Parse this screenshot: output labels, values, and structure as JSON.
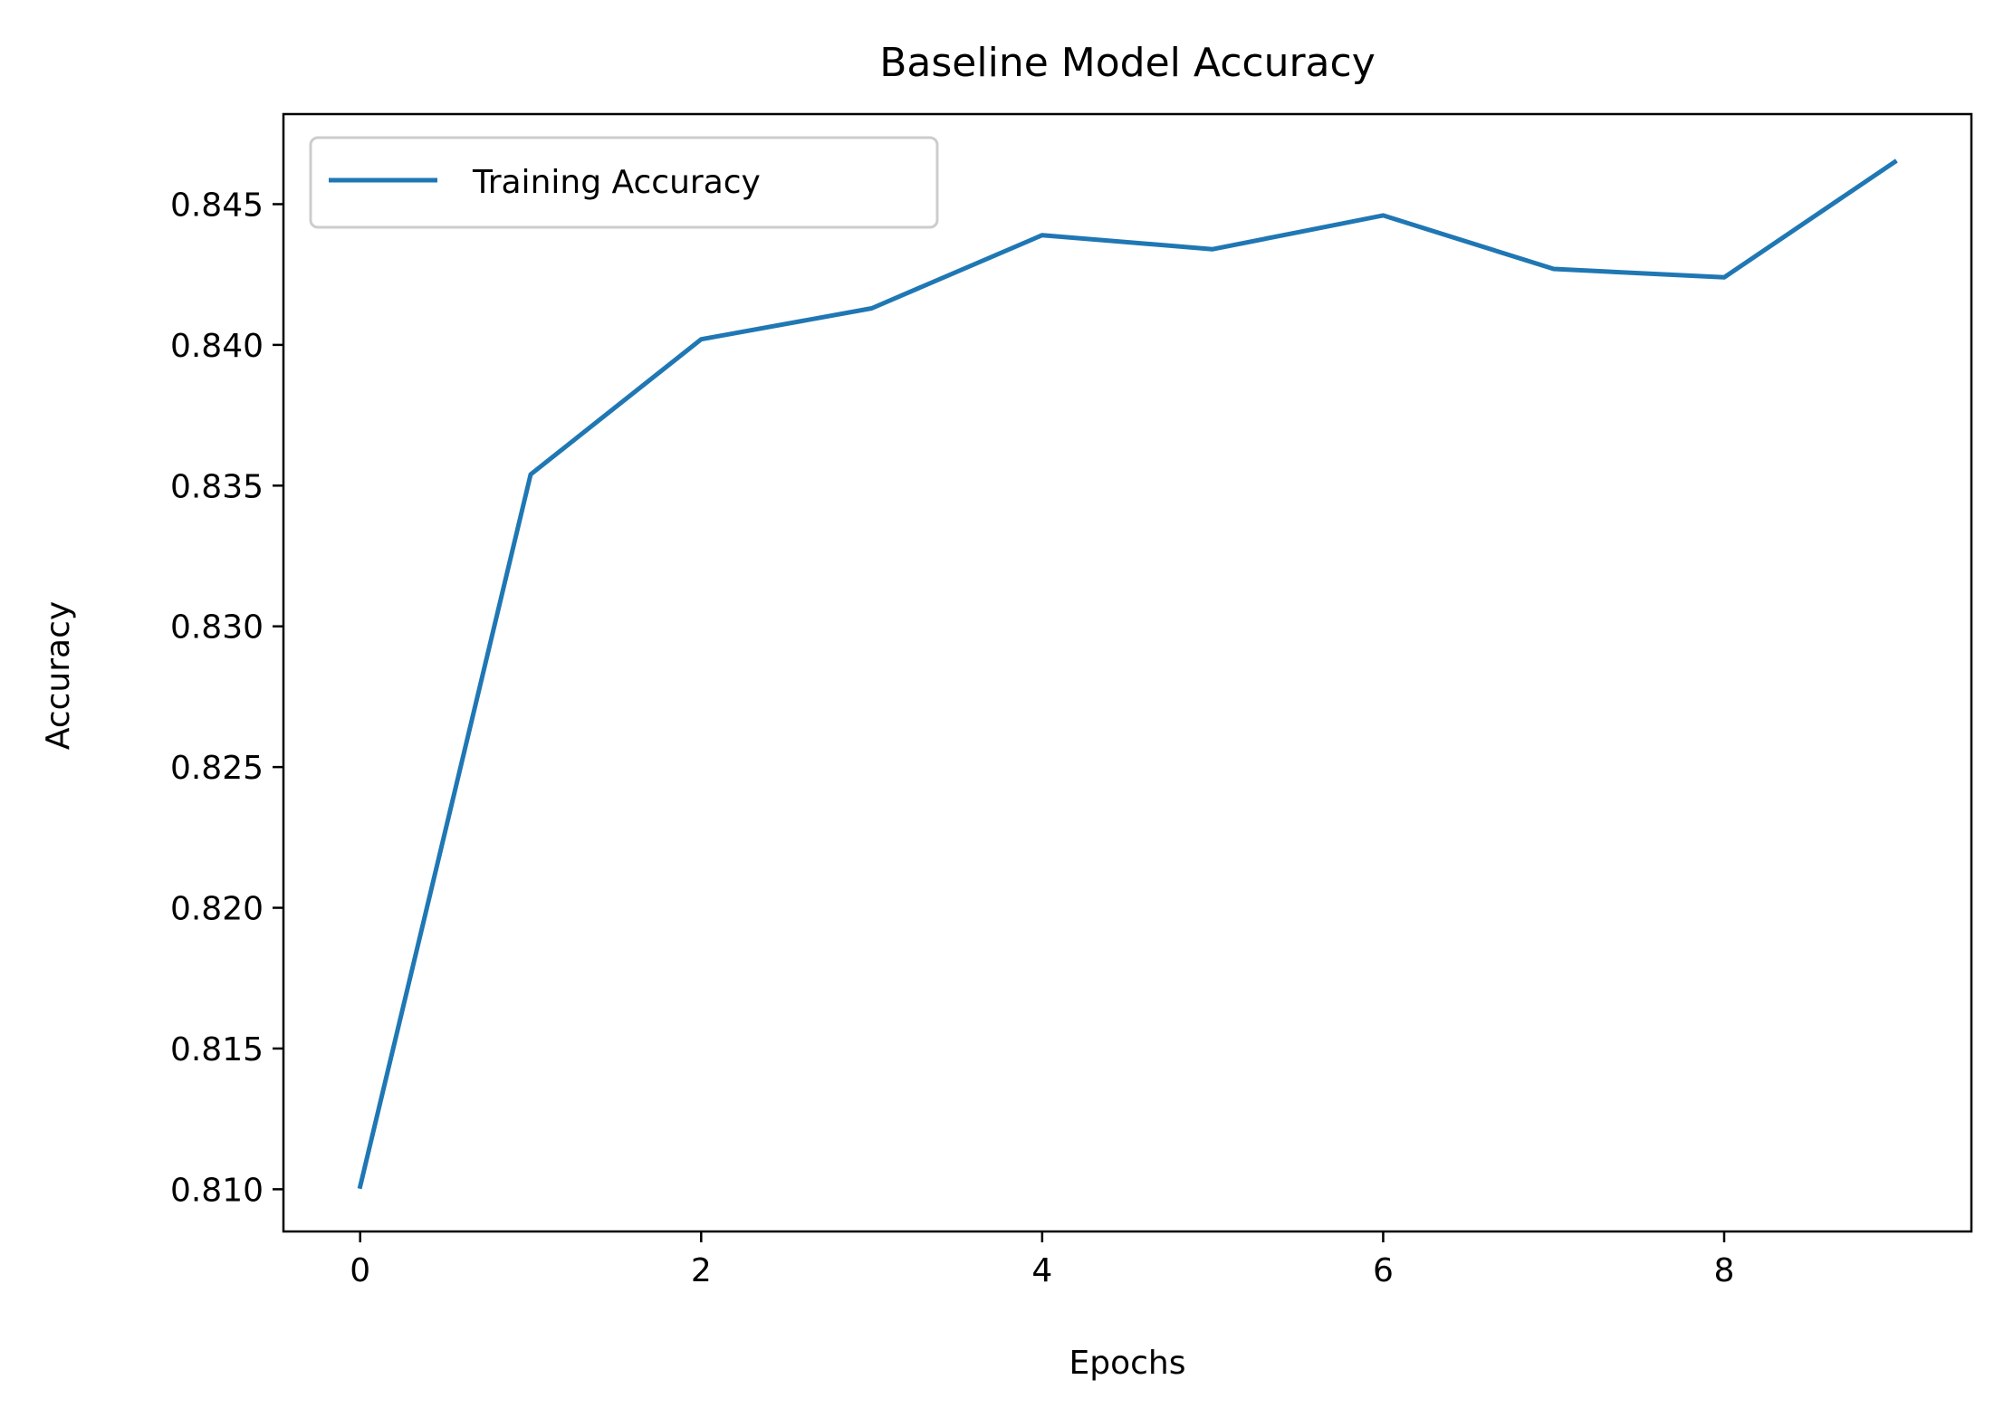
{
  "chart_data": {
    "type": "line",
    "title": "Baseline Model Accuracy",
    "xlabel": "Epochs",
    "ylabel": "Accuracy",
    "xlim": [
      -0.45,
      9.45
    ],
    "ylim": [
      0.8085,
      0.8482
    ],
    "x_ticks": [
      0,
      2,
      4,
      6,
      8
    ],
    "x_tick_labels": [
      "0",
      "2",
      "4",
      "6",
      "8"
    ],
    "y_ticks": [
      0.81,
      0.815,
      0.82,
      0.825,
      0.83,
      0.835,
      0.84,
      0.845
    ],
    "y_tick_labels": [
      "0.810",
      "0.815",
      "0.820",
      "0.825",
      "0.830",
      "0.835",
      "0.840",
      "0.845"
    ],
    "grid": false,
    "legend_position": "upper-left",
    "series": [
      {
        "name": "Training Accuracy",
        "color": "#1f77b4",
        "x": [
          0,
          1,
          2,
          3,
          4,
          5,
          6,
          7,
          8,
          9
        ],
        "y": [
          0.8101,
          0.8354,
          0.8402,
          0.8413,
          0.8439,
          0.8434,
          0.8446,
          0.8427,
          0.8424,
          0.8465
        ]
      }
    ]
  }
}
